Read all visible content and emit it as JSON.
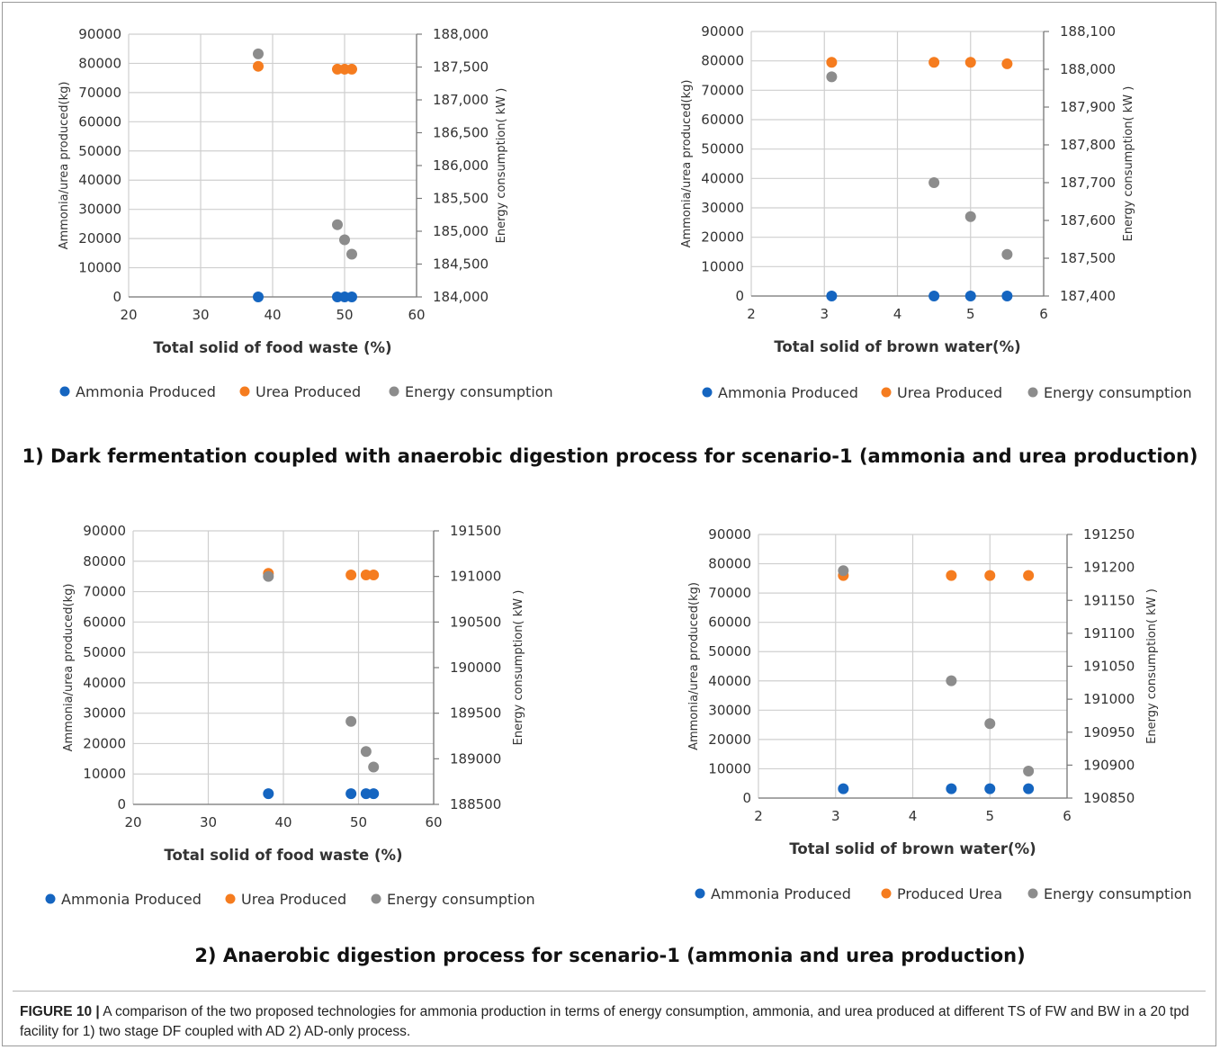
{
  "colors": {
    "ammonia": "#1565C0",
    "urea": "#F57C1F",
    "energy": "#8C8C8C"
  },
  "section_titles": [
    "1) Dark fermentation coupled with anaerobic digestion process for scenario-1 (ammonia and urea production)",
    "2) Anaerobic digestion process for scenario-1 (ammonia and urea production)"
  ],
  "caption": {
    "label": "FIGURE 10 |",
    "text": " A comparison of the two proposed technologies for ammonia production in terms of energy consumption, ammonia, and urea produced at different TS of FW and BW in a 20 tpd facility for 1) two stage DF coupled with AD 2) AD-only process."
  },
  "chart_data": [
    {
      "type": "scatter",
      "xlabel": "Total solid of  food waste (%)",
      "ylabel": "Ammonia/urea produced(kg)",
      "y2label": "Energy consumption( kW )",
      "xlim": [
        20,
        60
      ],
      "xticks": [
        20,
        30,
        40,
        50,
        60
      ],
      "ylim": [
        0,
        90000
      ],
      "yticks": [
        0,
        10000,
        20000,
        30000,
        40000,
        50000,
        60000,
        70000,
        80000,
        90000
      ],
      "y2lim": [
        184000,
        188000
      ],
      "y2ticks": [
        184000,
        184500,
        185000,
        185500,
        186000,
        186500,
        187000,
        187500,
        188000
      ],
      "y2ticklabels": [
        "184,000",
        "184,500",
        "185,000",
        "185,500",
        "186,000",
        "186,500",
        "187,000",
        "187,500",
        "188,000"
      ],
      "grid": true,
      "legend": [
        "Ammonia  Produced",
        "Urea  Produced",
        "Energy consumption"
      ],
      "series": [
        {
          "name": "Ammonia  Produced",
          "axis": "left",
          "color": "ammonia",
          "x": [
            38,
            49,
            50,
            51
          ],
          "y": [
            0,
            0,
            0,
            0
          ]
        },
        {
          "name": "Urea  Produced",
          "axis": "left",
          "color": "urea",
          "x": [
            38,
            49,
            50,
            51
          ],
          "y": [
            79000,
            78000,
            78000,
            78000
          ]
        },
        {
          "name": "Energy consumption",
          "axis": "right",
          "color": "energy",
          "x": [
            38,
            49,
            50,
            51
          ],
          "y": [
            187700,
            185100,
            184870,
            184650
          ]
        }
      ]
    },
    {
      "type": "scatter",
      "xlabel": "Total solid of  brown water(%)",
      "ylabel": "Ammonia/urea produced(kg)",
      "y2label": "Energy consumption( kW )",
      "xlim": [
        2,
        6
      ],
      "xticks": [
        2,
        3,
        4,
        5,
        6
      ],
      "ylim": [
        0,
        90000
      ],
      "yticks": [
        0,
        10000,
        20000,
        30000,
        40000,
        50000,
        60000,
        70000,
        80000,
        90000
      ],
      "y2lim": [
        187400,
        188100
      ],
      "y2ticks": [
        187400,
        187500,
        187600,
        187700,
        187800,
        187900,
        188000,
        188100
      ],
      "y2ticklabels": [
        "187,400",
        "187,500",
        "187,600",
        "187,700",
        "187,800",
        "187,900",
        "188,000",
        "188,100"
      ],
      "grid": true,
      "legend": [
        "Ammonia  Produced",
        "Urea  Produced",
        "Energy consumption"
      ],
      "series": [
        {
          "name": "Ammonia  Produced",
          "axis": "left",
          "color": "ammonia",
          "x": [
            3.1,
            4.5,
            5.0,
            5.5
          ],
          "y": [
            0,
            0,
            0,
            0
          ]
        },
        {
          "name": "Urea  Produced",
          "axis": "left",
          "color": "urea",
          "x": [
            3.1,
            4.5,
            5.0,
            5.5
          ],
          "y": [
            79500,
            79500,
            79500,
            79000
          ]
        },
        {
          "name": "Energy consumption",
          "axis": "right",
          "color": "energy",
          "x": [
            3.1,
            4.5,
            5.0,
            5.5
          ],
          "y": [
            187980,
            187700,
            187610,
            187510
          ]
        }
      ]
    },
    {
      "type": "scatter",
      "xlabel": "Total solid of food waste (%)",
      "ylabel": "Ammonia/urea produced(kg)",
      "y2label": "Energy consumption( kW )",
      "xlim": [
        20,
        60
      ],
      "xticks": [
        20,
        30,
        40,
        50,
        60
      ],
      "ylim": [
        0,
        90000
      ],
      "yticks": [
        0,
        10000,
        20000,
        30000,
        40000,
        50000,
        60000,
        70000,
        80000,
        90000
      ],
      "y2lim": [
        188500,
        191500
      ],
      "y2ticks": [
        188500,
        189000,
        189500,
        190000,
        190500,
        191000,
        191500
      ],
      "y2ticklabels": [
        "188500",
        "189000",
        "189500",
        "190000",
        "190500",
        "191000",
        "191500"
      ],
      "grid": true,
      "legend": [
        "Ammonia  Produced",
        "Urea  Produced",
        "Energy consumption"
      ],
      "series": [
        {
          "name": "Ammonia  Produced",
          "axis": "left",
          "color": "ammonia",
          "x": [
            38,
            49,
            51,
            52
          ],
          "y": [
            3500,
            3500,
            3500,
            3500
          ]
        },
        {
          "name": "Urea  Produced",
          "axis": "left",
          "color": "urea",
          "x": [
            38,
            49,
            51,
            52
          ],
          "y": [
            76000,
            75500,
            75500,
            75500
          ]
        },
        {
          "name": "Energy consumption",
          "axis": "right",
          "color": "energy",
          "x": [
            38,
            49,
            51,
            52
          ],
          "y": [
            191000,
            189410,
            189080,
            188910
          ]
        }
      ]
    },
    {
      "type": "scatter",
      "xlabel": "Total solid of brown water(%)",
      "ylabel": "Ammonia/urea produced(kg)",
      "y2label": "Energy consumption( kW )",
      "xlim": [
        2,
        6
      ],
      "xticks": [
        2,
        3,
        4,
        5,
        6
      ],
      "ylim": [
        0,
        90000
      ],
      "yticks": [
        0,
        10000,
        20000,
        30000,
        40000,
        50000,
        60000,
        70000,
        80000,
        90000
      ],
      "y2lim": [
        190850,
        191250
      ],
      "y2ticks": [
        190850,
        190900,
        190950,
        191000,
        191050,
        191100,
        191150,
        191200,
        191250
      ],
      "y2ticklabels": [
        "190850",
        "190900",
        "190950",
        "191000",
        "191050",
        "191100",
        "191150",
        "191200",
        "191250"
      ],
      "grid": true,
      "legend": [
        "Ammonia  Produced",
        "Produced Urea",
        "Energy consumption"
      ],
      "series": [
        {
          "name": "Ammonia  Produced",
          "axis": "left",
          "color": "ammonia",
          "x": [
            3.1,
            4.5,
            5.0,
            5.5
          ],
          "y": [
            3200,
            3200,
            3200,
            3200
          ]
        },
        {
          "name": "Produced Urea",
          "axis": "left",
          "color": "urea",
          "x": [
            3.1,
            4.5,
            5.0,
            5.5
          ],
          "y": [
            76000,
            76000,
            76000,
            76000
          ]
        },
        {
          "name": "Energy consumption",
          "axis": "right",
          "color": "energy",
          "x": [
            3.1,
            4.5,
            5.0,
            5.5
          ],
          "y": [
            191195,
            191028,
            190963,
            190891
          ]
        }
      ]
    }
  ]
}
